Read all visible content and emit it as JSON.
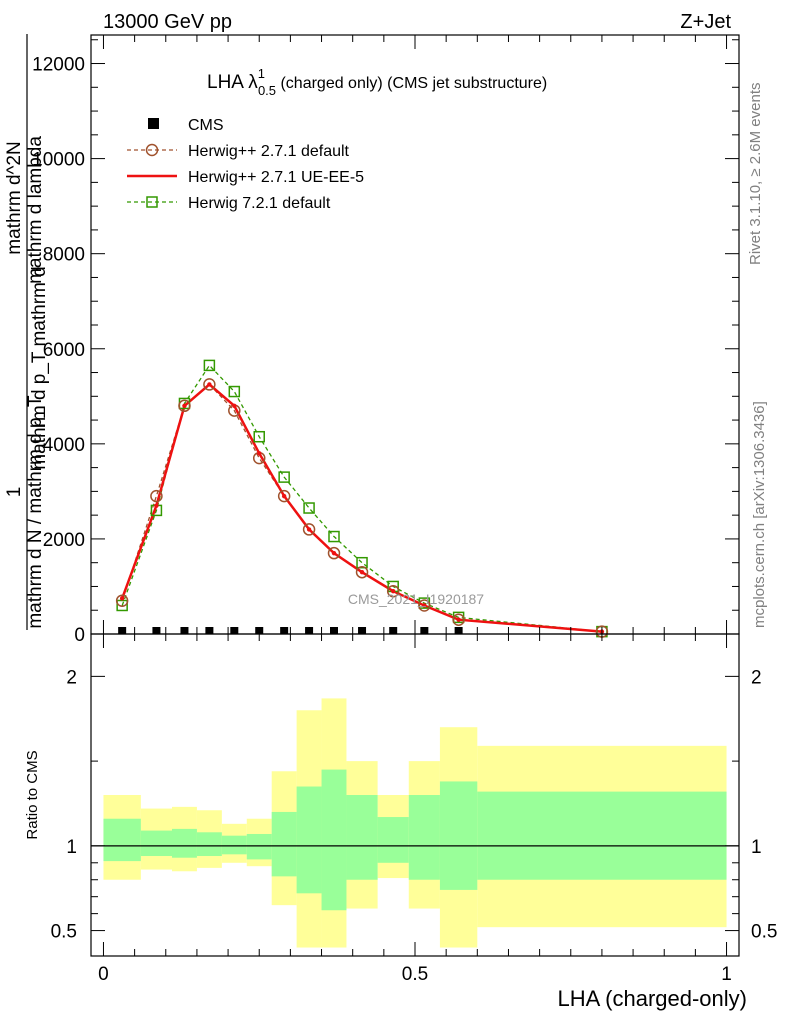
{
  "header": {
    "left": "13000 GeV pp",
    "right": "Z+Jet"
  },
  "side_labels": {
    "rivet": "Rivet 3.1.10, ≥ 2.6M events",
    "mcplots": "mcplots.cern.ch [arXiv:1306.3436]"
  },
  "watermark": "CMS_2021_I1920187",
  "colors": {
    "cms": "#000000",
    "herwig_default": "#a0522d",
    "herwig_ueee5": "#ee1111",
    "herwig7": "#339900",
    "band_yellow": "#ffff99",
    "band_green": "#99ff99"
  },
  "chart_data": [
    {
      "type": "line",
      "title": "LHA λ^1_0.5 (charged only) (CMS jet substructure)",
      "title_parts": {
        "main": "LHA λ",
        "sup": "1",
        "sub": "0.5",
        "rest": " (charged only) (CMS jet substructure)"
      },
      "ylabel_top": "mathrm d lambda",
      "ylabel_mid": "mathrm d p_T mathrm d",
      "ylabel_numer": "mathrm d^2N",
      "ylabel_denom": "mathrm d N / mathrm d p_T",
      "ylabel_one": "1",
      "xlim": [
        -0.02,
        1.02
      ],
      "ylim": [
        0,
        12600
      ],
      "yticks": [
        0,
        2000,
        4000,
        6000,
        8000,
        10000,
        12000
      ],
      "yticklabels": [
        "0",
        "2000",
        "4000",
        "6000",
        "8000",
        "10000",
        "12000"
      ],
      "legend_position": "top-left",
      "series": [
        {
          "name": "CMS",
          "style": "black squares",
          "x": [
            0.03,
            0.085,
            0.13,
            0.17,
            0.21,
            0.25,
            0.29,
            0.33,
            0.37,
            0.415,
            0.465,
            0.515,
            0.57
          ],
          "y": [
            0,
            0,
            0,
            0,
            0,
            0,
            0,
            0,
            0,
            0,
            0,
            0,
            0
          ]
        },
        {
          "name": "Herwig++ 2.7.1 default",
          "style": "dashed circles",
          "x": [
            0.03,
            0.085,
            0.13,
            0.17,
            0.21,
            0.25,
            0.29,
            0.33,
            0.37,
            0.415,
            0.465,
            0.515,
            0.57,
            0.8
          ],
          "y": [
            700,
            2900,
            4800,
            5250,
            4700,
            3700,
            2900,
            2200,
            1700,
            1300,
            900,
            600,
            300,
            50
          ]
        },
        {
          "name": "Herwig++ 2.7.1 UE-EE-5",
          "style": "solid line",
          "x": [
            0.03,
            0.085,
            0.13,
            0.17,
            0.21,
            0.25,
            0.29,
            0.33,
            0.37,
            0.415,
            0.465,
            0.515,
            0.57,
            0.8
          ],
          "y": [
            750,
            2700,
            4800,
            5250,
            4800,
            3800,
            2900,
            2200,
            1700,
            1300,
            900,
            600,
            300,
            50
          ]
        },
        {
          "name": "Herwig 7.2.1 default",
          "style": "dashed squares",
          "x": [
            0.03,
            0.085,
            0.13,
            0.17,
            0.21,
            0.25,
            0.29,
            0.33,
            0.37,
            0.415,
            0.465,
            0.515,
            0.57,
            0.8
          ],
          "y": [
            600,
            2600,
            4850,
            5650,
            5100,
            4150,
            3300,
            2650,
            2050,
            1500,
            1000,
            650,
            350,
            50
          ]
        }
      ]
    },
    {
      "type": "area",
      "ylabel": "Ratio to CMS",
      "xlabel": "LHA (charged-only)",
      "xlim": [
        -0.02,
        1.02
      ],
      "ylim": [
        0.35,
        2.25
      ],
      "xticks": [
        0,
        0.5,
        1
      ],
      "xticklabels": [
        "0",
        "0.5",
        "1"
      ],
      "yticks": [
        0.5,
        1,
        2
      ],
      "yticklabels": [
        "0.5",
        "1",
        "2"
      ],
      "reference_line": 1,
      "bins": [
        [
          0.0,
          0.06
        ],
        [
          0.06,
          0.11
        ],
        [
          0.11,
          0.15
        ],
        [
          0.15,
          0.19
        ],
        [
          0.19,
          0.23
        ],
        [
          0.23,
          0.27
        ],
        [
          0.27,
          0.31
        ],
        [
          0.31,
          0.35
        ],
        [
          0.35,
          0.39
        ],
        [
          0.39,
          0.44
        ],
        [
          0.44,
          0.49
        ],
        [
          0.49,
          0.54
        ],
        [
          0.54,
          0.6
        ],
        [
          0.6,
          1.0
        ]
      ],
      "green_band": [
        [
          0.91,
          1.16
        ],
        [
          0.94,
          1.09
        ],
        [
          0.93,
          1.1
        ],
        [
          0.94,
          1.08
        ],
        [
          0.95,
          1.06
        ],
        [
          0.92,
          1.07
        ],
        [
          0.82,
          1.2
        ],
        [
          0.72,
          1.35
        ],
        [
          0.62,
          1.45
        ],
        [
          0.8,
          1.3
        ],
        [
          0.9,
          1.17
        ],
        [
          0.8,
          1.3
        ],
        [
          0.74,
          1.38
        ],
        [
          0.8,
          1.32
        ]
      ],
      "yellow_band": [
        [
          0.8,
          1.3
        ],
        [
          0.86,
          1.22
        ],
        [
          0.85,
          1.23
        ],
        [
          0.87,
          1.21
        ],
        [
          0.9,
          1.13
        ],
        [
          0.88,
          1.16
        ],
        [
          0.65,
          1.44
        ],
        [
          0.4,
          1.8
        ],
        [
          0.4,
          1.87
        ],
        [
          0.63,
          1.5
        ],
        [
          0.81,
          1.3
        ],
        [
          0.63,
          1.5
        ],
        [
          0.4,
          1.7
        ],
        [
          0.52,
          1.59
        ]
      ]
    }
  ]
}
